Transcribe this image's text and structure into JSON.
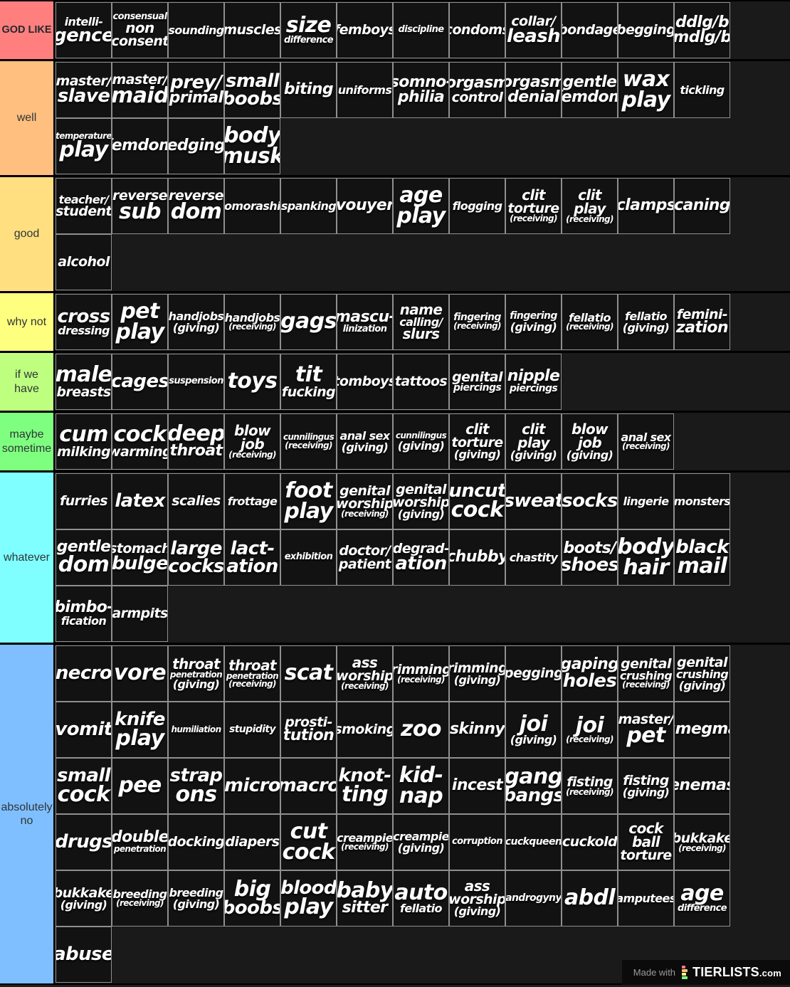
{
  "footer": {
    "made_with": "Made with",
    "brand": "TIERLISTS",
    "brand_suffix": ".com"
  },
  "tiers": [
    {
      "name": "GOD LIKE",
      "color": "#ff7f7f",
      "bold": true,
      "items": [
        "intelli-\ngence",
        "consensual\nnon\nconsent",
        "sounding",
        "muscles",
        "size\ndifference",
        "femboys",
        "discipline",
        "condoms",
        "collar/\nleash",
        "bondage",
        "begging",
        "ddlg/b\nmdlg/b"
      ]
    },
    {
      "name": "well",
      "color": "#ffbf7f",
      "bold": false,
      "items": [
        "master/\nslave",
        "master/\nmaid",
        "prey/\nprimal",
        "small\nboobs",
        "biting",
        "uniforms",
        "somno-\nphilia",
        "orgasm\ncontrol",
        "orgasm\ndenial",
        "gentle\nfemdom",
        "wax\nplay",
        "tickling",
        "temperature\nplay",
        "femdom",
        "edging",
        "body\nmusk"
      ]
    },
    {
      "name": "good",
      "color": "#ffdf80",
      "bold": false,
      "items": [
        "teacher/\nstudent",
        "reverse\nsub",
        "reverse\ndom",
        "omorashi",
        "spanking",
        "vouyer",
        "age\nplay",
        "flogging",
        "clit\ntorture\n(receiving)",
        "clit\nplay\n(receiving)",
        "clamps",
        "caning",
        "alcohol"
      ]
    },
    {
      "name": "why not",
      "color": "#ffff7f",
      "bold": false,
      "items": [
        "cross\ndressing",
        "pet\nplay",
        "handjobs\n(giving)",
        "handjobs\n(receiving)",
        "gags",
        "mascu-\nlinization",
        "name\ncalling/\nslurs",
        "fingering\n(receiving)",
        "fingering\n(giving)",
        "fellatio\n(receiving)",
        "fellatio\n(giving)",
        "femini-\nzation"
      ]
    },
    {
      "name": "if we have",
      "color": "#bfff7f",
      "bold": false,
      "items": [
        "male\nbreasts",
        "cages",
        "suspension",
        "toys",
        "tit\nfucking",
        "tomboys",
        "tattoos",
        "genital\npiercings",
        "nipple\npiercings"
      ]
    },
    {
      "name": "maybe sometime",
      "color": "#7fff7f",
      "bold": false,
      "items": [
        "cum\nmilking",
        "cock\nwarming",
        "deep\nthroat",
        "blow\njob\n(receiving)",
        "cunnilingus\n(receiving)",
        "anal sex\n(giving)",
        "cunnilingus\n(giving)",
        "clit\ntorture\n(giving)",
        "clit\nplay\n(giving)",
        "blow\njob\n(giving)",
        "anal sex\n(receiving)"
      ]
    },
    {
      "name": "whatever",
      "color": "#7fffff",
      "bold": false,
      "items": [
        "furries",
        "latex",
        "scalies",
        "frottage",
        "foot\nplay",
        "genital\nworship\n(receiving)",
        "genital\nworship\n(giving)",
        "uncut\ncock",
        "sweat",
        "socks",
        "lingerie",
        "monsters",
        "gentle\ndom",
        "stomach\nbulge",
        "large\ncocks",
        "lact-\nation",
        "exhibition",
        "doctor/\npatient",
        "degrad-\nation",
        "chubby",
        "chastity",
        "boots/\nshoes",
        "body\nhair",
        "black\nmail",
        "bimbo-\nfication",
        "armpits"
      ]
    },
    {
      "name": "absolutely no",
      "color": "#7fbfff",
      "bold": false,
      "items": [
        "necro",
        "vore",
        "throat\npenetration\n(giving)",
        "throat\npenetration\n(receiving)",
        "scat",
        "ass\nworship\n(receiving)",
        "rimming\n(receiving)",
        "rimming\n(giving)",
        "pegging",
        "gaping\nholes",
        "genital\ncrushing\n(receiving)",
        "genital\ncrushing\n(giving)",
        "vomit",
        "knife\nplay",
        "humiliation",
        "stupidity",
        "prosti-\ntution",
        "smoking",
        "zoo",
        "skinny",
        "joi\n(giving)",
        "joi\n(receiving)",
        "master/\npet",
        "smegma",
        "small\ncock",
        "pee",
        "strap\nons",
        "micro",
        "macro",
        "knot-\nting",
        "kid-\nnap",
        "incest",
        "gang\nbangs",
        "fisting\n(receiving)",
        "fisting\n(giving)",
        "enemas",
        "drugs",
        "double\npenetration",
        "docking",
        "diapers",
        "cut\ncock",
        "creampie\n(receiving)",
        "creampie\n(giving)",
        "corruption",
        "cuckqueen",
        "cuckold",
        "cock\nball\ntorture",
        "bukkake\n(receiving)",
        "bukkake\n(giving)",
        "breeding\n(receiving)",
        "breeding\n(giving)",
        "big\nboobs",
        "blood\nplay",
        "baby\nsitter",
        "auto\nfellatio",
        "ass\nworship\n(giving)",
        "androgyny",
        "abdl",
        "amputees",
        "age\ndifference",
        "abuse"
      ]
    }
  ]
}
